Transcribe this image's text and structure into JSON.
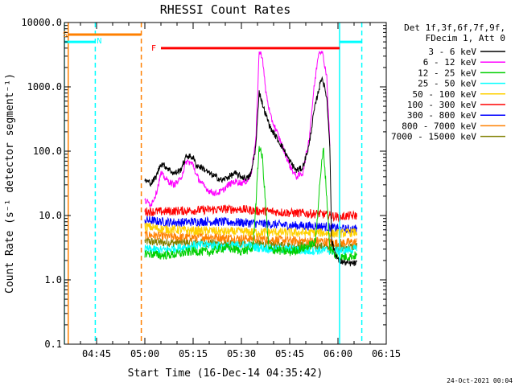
{
  "chart_data": {
    "type": "line",
    "title": "RHESSI Count Rates",
    "ylabel": "Count Rate (s⁻¹ detector segment⁻¹)",
    "xlabel": "Start Time (16-Dec-14 04:35:42)",
    "y_scale": "log",
    "ylim": [
      0.1,
      10000
    ],
    "xlim_minutes": [
      0,
      100
    ],
    "y_ticks": [
      "0.1",
      "1.0",
      "10.0",
      "100.0",
      "1000.0",
      "10000.0"
    ],
    "x_ticks": [
      {
        "label": "04:45",
        "minute": 10
      },
      {
        "label": "05:00",
        "minute": 25
      },
      {
        "label": "05:15",
        "minute": 40
      },
      {
        "label": "05:30",
        "minute": 55
      },
      {
        "label": "05:45",
        "minute": 70
      },
      {
        "label": "06:00",
        "minute": 85
      },
      {
        "label": "06:15",
        "minute": 100
      }
    ],
    "legend_header": [
      "Det 1f,3f,6f,7f,9f,",
      "FDecim 1, Att 0"
    ],
    "legend_position": "right",
    "series": [
      {
        "name": "3 - 6 keV",
        "color": "#000000",
        "points": [
          [
            25,
            35
          ],
          [
            27,
            32
          ],
          [
            28.5,
            40
          ],
          [
            30,
            65
          ],
          [
            32,
            55
          ],
          [
            34,
            45
          ],
          [
            36,
            50
          ],
          [
            38,
            85
          ],
          [
            40,
            80
          ],
          [
            41,
            60
          ],
          [
            43,
            55
          ],
          [
            45,
            45
          ],
          [
            47,
            40
          ],
          [
            49,
            35
          ],
          [
            51,
            40
          ],
          [
            53,
            45
          ],
          [
            55,
            40
          ],
          [
            57,
            38
          ],
          [
            58,
            45
          ],
          [
            59.5,
            120
          ],
          [
            60.5,
            850
          ],
          [
            62,
            450
          ],
          [
            64,
            230
          ],
          [
            66,
            160
          ],
          [
            68,
            110
          ],
          [
            70,
            70
          ],
          [
            72,
            50
          ],
          [
            74,
            55
          ],
          [
            76,
            120
          ],
          [
            77.5,
            400
          ],
          [
            79,
            900
          ],
          [
            80,
            1450
          ],
          [
            81.5,
            700
          ],
          [
            82.5,
            120
          ],
          [
            83,
            4
          ],
          [
            85,
            2
          ],
          [
            88,
            1.8
          ],
          [
            91,
            1.8
          ]
        ]
      },
      {
        "name": "6 - 12 keV",
        "color": "#ff00ff",
        "points": [
          [
            25,
            17
          ],
          [
            27,
            15
          ],
          [
            28.5,
            22
          ],
          [
            30,
            45
          ],
          [
            32,
            35
          ],
          [
            34,
            30
          ],
          [
            36,
            36
          ],
          [
            38,
            70
          ],
          [
            40,
            62
          ],
          [
            41,
            42
          ],
          [
            43,
            30
          ],
          [
            45,
            24
          ],
          [
            47,
            22
          ],
          [
            49,
            24
          ],
          [
            51,
            30
          ],
          [
            53,
            34
          ],
          [
            55,
            32
          ],
          [
            57,
            35
          ],
          [
            58,
            45
          ],
          [
            59.5,
            150
          ],
          [
            60.5,
            3500
          ],
          [
            61.5,
            3000
          ],
          [
            62.5,
            900
          ],
          [
            64,
            350
          ],
          [
            66,
            200
          ],
          [
            68,
            110
          ],
          [
            70,
            60
          ],
          [
            72,
            40
          ],
          [
            74,
            45
          ],
          [
            76,
            150
          ],
          [
            77.5,
            900
          ],
          [
            79,
            3500
          ],
          [
            80,
            3700
          ],
          [
            81.5,
            1500
          ],
          [
            82.5,
            120
          ]
        ]
      },
      {
        "name": "12 - 25 keV",
        "color": "#00d000",
        "points": [
          [
            25,
            2.6
          ],
          [
            30,
            2.4
          ],
          [
            35,
            2.5
          ],
          [
            40,
            2.8
          ],
          [
            45,
            2.7
          ],
          [
            50,
            3.2
          ],
          [
            55,
            2.8
          ],
          [
            58.5,
            3
          ],
          [
            59.5,
            15
          ],
          [
            60.5,
            120
          ],
          [
            61.5,
            80
          ],
          [
            62.5,
            15
          ],
          [
            63.5,
            3
          ],
          [
            70,
            2.7
          ],
          [
            75,
            3.2
          ],
          [
            78,
            3.8
          ],
          [
            79.5,
            40
          ],
          [
            80.5,
            110
          ],
          [
            81.5,
            20
          ],
          [
            82.5,
            3
          ],
          [
            85,
            2.2
          ],
          [
            88,
            2.3
          ],
          [
            91,
            2.4
          ]
        ]
      },
      {
        "name": "25 - 50 keV",
        "color": "#00ffff",
        "points": [
          [
            25,
            3.0
          ],
          [
            30,
            2.9
          ],
          [
            35,
            3.1
          ],
          [
            40,
            3.4
          ],
          [
            45,
            3.5
          ],
          [
            50,
            3.3
          ],
          [
            55,
            3.5
          ],
          [
            60,
            3.2
          ],
          [
            65,
            3.0
          ],
          [
            70,
            3.0
          ],
          [
            75,
            2.8
          ],
          [
            80,
            2.9
          ],
          [
            85,
            2.8
          ],
          [
            88,
            2.9
          ],
          [
            91,
            3.0
          ]
        ]
      },
      {
        "name": "50 - 100 keV",
        "color": "#ffd000",
        "points": [
          [
            25,
            6.8
          ],
          [
            30,
            6.2
          ],
          [
            35,
            6.0
          ],
          [
            40,
            5.8
          ],
          [
            45,
            5.8
          ],
          [
            50,
            5.6
          ],
          [
            55,
            5.6
          ],
          [
            60,
            5.5
          ],
          [
            65,
            5.5
          ],
          [
            70,
            5.4
          ],
          [
            75,
            5.4
          ],
          [
            80,
            5.4
          ],
          [
            85,
            5.2
          ],
          [
            88,
            5.4
          ],
          [
            91,
            5.5
          ]
        ]
      },
      {
        "name": "100 - 300 keV",
        "color": "#ff0000",
        "points": [
          [
            25,
            11.5
          ],
          [
            30,
            11.5
          ],
          [
            35,
            11.8
          ],
          [
            40,
            12
          ],
          [
            45,
            12.3
          ],
          [
            50,
            12.6
          ],
          [
            55,
            12.5
          ],
          [
            60,
            11.8
          ],
          [
            65,
            11.5
          ],
          [
            70,
            11.0
          ],
          [
            75,
            10.8
          ],
          [
            80,
            10.5
          ],
          [
            85,
            9.5
          ],
          [
            88,
            9.8
          ],
          [
            91,
            10.0
          ]
        ]
      },
      {
        "name": "300 - 800 keV",
        "color": "#0000ff",
        "points": [
          [
            25,
            8.5
          ],
          [
            30,
            8.0
          ],
          [
            35,
            7.8
          ],
          [
            40,
            8.0
          ],
          [
            45,
            8.1
          ],
          [
            50,
            7.9
          ],
          [
            55,
            7.8
          ],
          [
            60,
            7.5
          ],
          [
            65,
            7.3
          ],
          [
            70,
            7.0
          ],
          [
            75,
            6.9
          ],
          [
            80,
            6.8
          ],
          [
            85,
            6.3
          ],
          [
            88,
            6.1
          ],
          [
            91,
            6.2
          ]
        ]
      },
      {
        "name": "800 - 7000 keV",
        "color": "#ff8000",
        "points": [
          [
            25,
            5.0
          ],
          [
            30,
            4.8
          ],
          [
            35,
            4.6
          ],
          [
            40,
            4.6
          ],
          [
            45,
            4.7
          ],
          [
            50,
            4.5
          ],
          [
            55,
            4.4
          ],
          [
            60,
            4.4
          ],
          [
            65,
            4.2
          ],
          [
            70,
            4.1
          ],
          [
            75,
            4.0
          ],
          [
            80,
            4.0
          ],
          [
            85,
            3.7
          ],
          [
            88,
            3.8
          ],
          [
            91,
            3.9
          ]
        ]
      },
      {
        "name": "7000 - 15000 keV",
        "color": "#808000",
        "points": [
          [
            25,
            4.0
          ],
          [
            30,
            3.8
          ],
          [
            35,
            3.8
          ],
          [
            40,
            3.8
          ],
          [
            45,
            3.7
          ],
          [
            50,
            3.6
          ],
          [
            55,
            3.6
          ],
          [
            60,
            3.6
          ],
          [
            65,
            3.5
          ],
          [
            70,
            3.4
          ],
          [
            75,
            3.4
          ],
          [
            80,
            3.3
          ],
          [
            85,
            3.2
          ],
          [
            88,
            3.2
          ],
          [
            91,
            3.3
          ]
        ]
      }
    ],
    "intervals": [
      {
        "label": "S",
        "color": "#ff8000",
        "y": 6500,
        "x_range": [
          1.2,
          23.9
        ]
      },
      {
        "label": "N",
        "color": "#00ffff",
        "y": 5000,
        "x_range": [
          0,
          9.6
        ]
      },
      {
        "label": "F",
        "color": "#ff0000",
        "y": 4000,
        "x_range": [
          30,
          85.5
        ]
      },
      {
        "label": "",
        "color": "#00ffff",
        "y": 5000,
        "x_range": [
          85.5,
          92.4
        ]
      }
    ],
    "markers": [
      {
        "color": "#ff8000",
        "style": "solid",
        "minute": 1.2
      },
      {
        "color": "#ff8000",
        "style": "dashed",
        "minute": 23.9
      },
      {
        "color": "#00ffff",
        "style": "solid",
        "minute": 0
      },
      {
        "color": "#00ffff",
        "style": "dashed",
        "minute": 9.6
      },
      {
        "color": "#00ffff",
        "style": "solid",
        "minute": 85.5
      },
      {
        "color": "#00ffff",
        "style": "dashed",
        "minute": 92.4
      }
    ],
    "footer_timestamp": "24-Oct-2021 00:04"
  }
}
